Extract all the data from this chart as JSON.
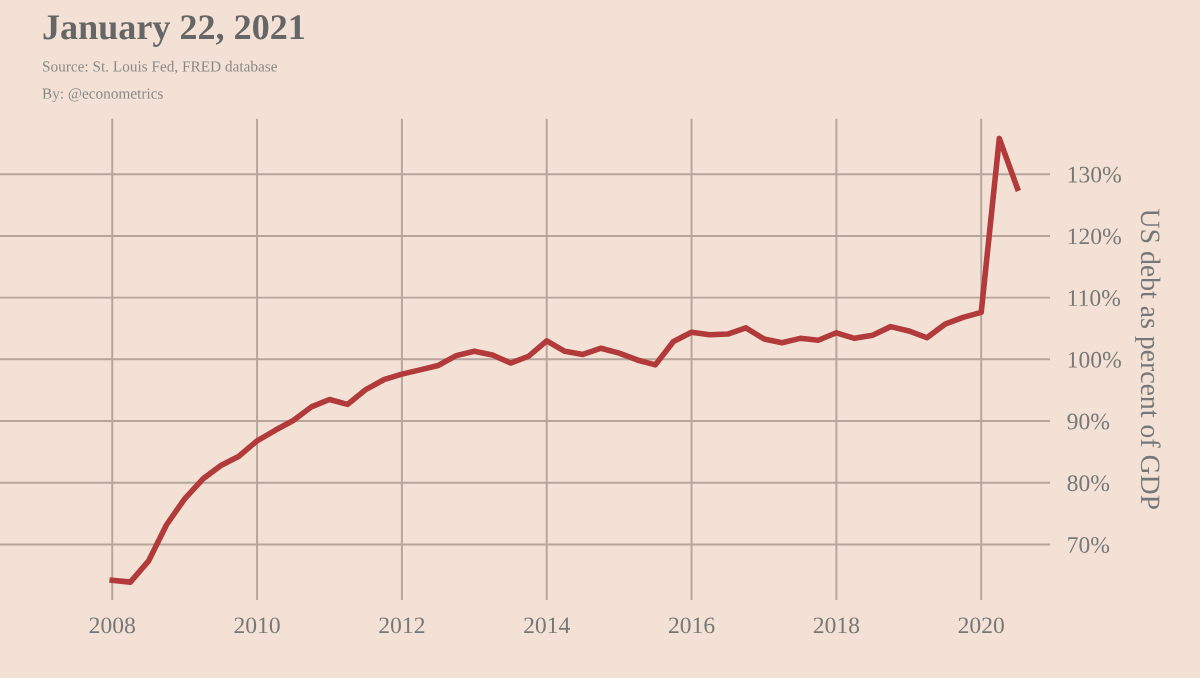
{
  "chart_data": {
    "type": "line",
    "title": "January 22, 2021",
    "annotations": [
      "Source: St. Louis Fed, FRED database",
      "By: @econometrics"
    ],
    "ylabel": "US debt as percent of GDP",
    "x": [
      2008.0,
      2008.25,
      2008.5,
      2008.75,
      2009.0,
      2009.25,
      2009.5,
      2009.75,
      2010.0,
      2010.25,
      2010.5,
      2010.75,
      2011.0,
      2011.25,
      2011.5,
      2011.75,
      2012.0,
      2012.25,
      2012.5,
      2012.75,
      2013.0,
      2013.25,
      2013.5,
      2013.75,
      2014.0,
      2014.25,
      2014.5,
      2014.75,
      2015.0,
      2015.25,
      2015.5,
      2015.75,
      2016.0,
      2016.25,
      2016.5,
      2016.75,
      2017.0,
      2017.25,
      2017.5,
      2017.75,
      2018.0,
      2018.25,
      2018.5,
      2018.75,
      2019.0,
      2019.25,
      2019.5,
      2019.75,
      2020.0,
      2020.25,
      2020.5
    ],
    "series": [
      {
        "color": "#b23a3a",
        "values": [
          64.2,
          63.9,
          67.3,
          73.2,
          77.4,
          80.6,
          82.8,
          84.3,
          86.8,
          88.5,
          90.1,
          92.3,
          93.5,
          92.7,
          95.1,
          96.7,
          97.6,
          98.3,
          99.0,
          100.6,
          101.3,
          100.7,
          99.4,
          100.5,
          103.0,
          101.3,
          100.8,
          101.8,
          101.0,
          99.9,
          99.1,
          102.9,
          104.4,
          104.0,
          104.1,
          105.1,
          103.3,
          102.7,
          103.4,
          103.1,
          104.3,
          103.4,
          103.9,
          105.3,
          104.6,
          103.5,
          105.7,
          106.8,
          107.6,
          135.8,
          127.7
        ]
      }
    ],
    "xlim": [
      2006.45,
      2020.95
    ],
    "ylim": [
      61,
      139
    ],
    "xticks": [
      2008,
      2010,
      2012,
      2014,
      2016,
      2018,
      2020
    ],
    "yticks": [
      {
        "value": 70,
        "label": "70%"
      },
      {
        "value": 80,
        "label": "80%"
      },
      {
        "value": 90,
        "label": "90%"
      },
      {
        "value": 100,
        "label": "100%"
      },
      {
        "value": 110,
        "label": "110%"
      },
      {
        "value": 120,
        "label": "120%"
      },
      {
        "value": 130,
        "label": "130%"
      }
    ],
    "grid": true,
    "marker": "none",
    "line_style": "solid",
    "legend": false
  }
}
